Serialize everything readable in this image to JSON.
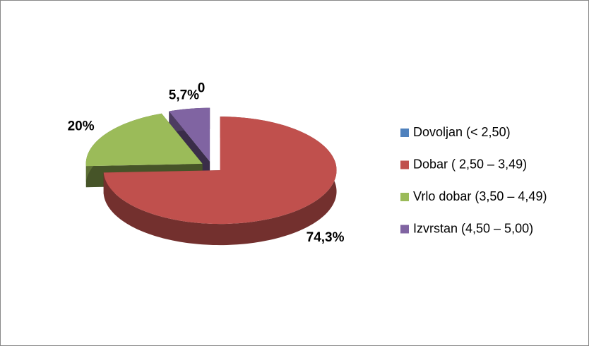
{
  "chart_data": {
    "type": "pie3d",
    "categories": [
      "Dovoljan (< 2,50)",
      "Dobar ( 2,50 – 3,49)",
      "Vrlo dobar (3,50 – 4,49)",
      "Izvrstan (4,50 – 5,00)"
    ],
    "values": [
      0,
      74.3,
      20,
      5.7
    ],
    "value_labels": [
      "0",
      "74,3%",
      "20%",
      "5,7%"
    ],
    "colors": [
      "#4f81bd",
      "#c0504d",
      "#9bbb59",
      "#8064a2"
    ],
    "legend": "right"
  }
}
